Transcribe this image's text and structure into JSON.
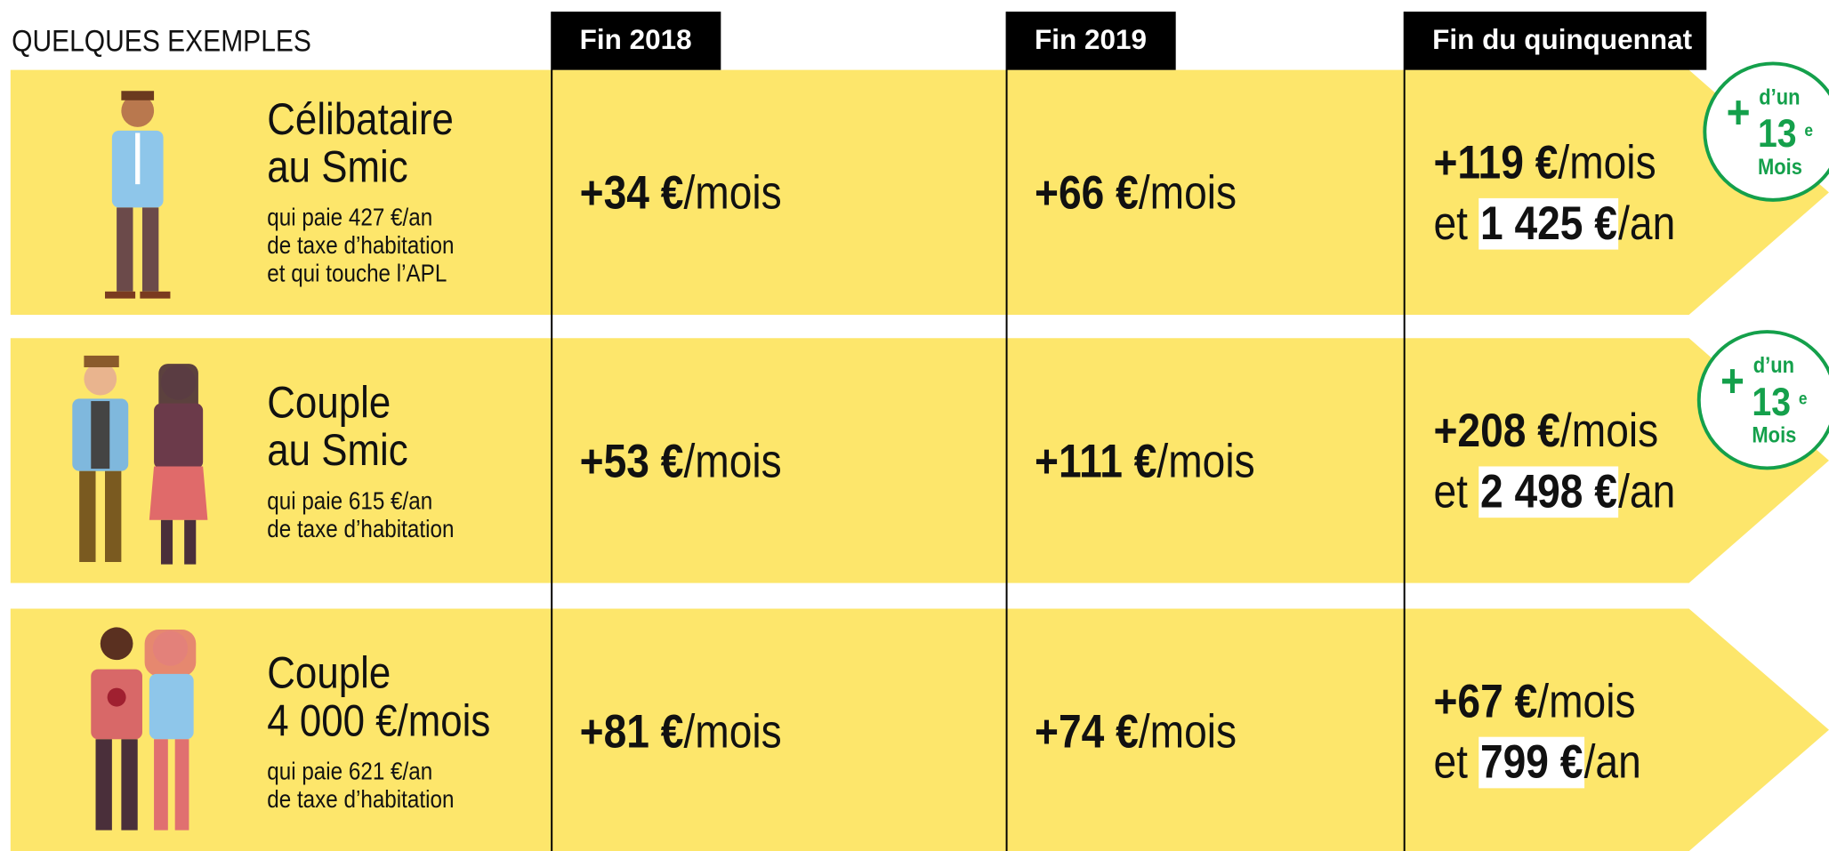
{
  "header": {
    "title": "QUELQUES EXEMPLES",
    "columns": [
      "Fin 2018",
      "Fin 2019",
      "Fin du quinquennat"
    ]
  },
  "rows": [
    {
      "title": [
        "Célibataire",
        "au Smic"
      ],
      "details": [
        "qui paie 427 €/an",
        "de taxe d’habitation",
        "et qui touche l’APL"
      ],
      "cells": [
        {
          "amount": "+34 €",
          "unit": "/mois"
        },
        {
          "amount": "+66 €",
          "unit": "/mois"
        }
      ],
      "total": {
        "monthly": {
          "amount": "+119 €",
          "unit": "/mois"
        },
        "prefix": "et",
        "yearly": {
          "amount": "1 425 €",
          "unit": "/an"
        }
      },
      "badge": {
        "plus": "+",
        "top": "d’un",
        "number": "13",
        "sup": "e",
        "bottom": "Mois"
      }
    },
    {
      "title": [
        "Couple",
        "au Smic"
      ],
      "details": [
        "qui paie 615 €/an",
        "de taxe d’habitation"
      ],
      "cells": [
        {
          "amount": "+53 €",
          "unit": "/mois"
        },
        {
          "amount": "+111 €",
          "unit": "/mois"
        }
      ],
      "total": {
        "monthly": {
          "amount": "+208 €",
          "unit": "/mois"
        },
        "prefix": "et",
        "yearly": {
          "amount": "2 498 €",
          "unit": "/an"
        }
      },
      "badge": {
        "plus": "+",
        "top": "d’un",
        "number": "13",
        "sup": "e",
        "bottom": "Mois"
      }
    },
    {
      "title": [
        "Couple",
        "4 000 €/mois"
      ],
      "details": [
        "qui paie 621 €/an",
        "de taxe d’habitation"
      ],
      "cells": [
        {
          "amount": "+81 €",
          "unit": "/mois"
        },
        {
          "amount": "+74 €",
          "unit": "/mois"
        }
      ],
      "total": {
        "monthly": {
          "amount": "+67 €",
          "unit": "/mois"
        },
        "prefix": "et",
        "yearly": {
          "amount": "799 €",
          "unit": "/an"
        }
      }
    }
  ]
}
